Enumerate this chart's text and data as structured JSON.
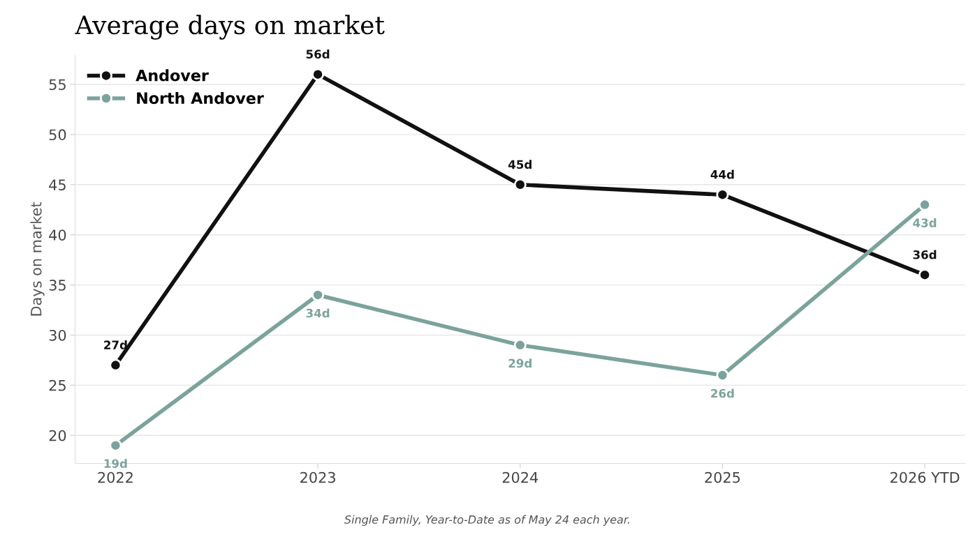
{
  "chart_data": {
    "type": "line",
    "title": "Average days on market",
    "ylabel": "Days on market",
    "categories": [
      "2022",
      "2023",
      "2024",
      "2025",
      "2026 YTD"
    ],
    "series": [
      {
        "name": "Andover",
        "color": "#111111",
        "values": [
          27,
          56,
          45,
          44,
          36
        ],
        "value_labels": [
          "27d",
          "56d",
          "45d",
          "44d",
          "36d"
        ]
      },
      {
        "name": "North Andover",
        "color": "#7ba39b",
        "values": [
          19,
          34,
          29,
          26,
          43
        ],
        "value_labels": [
          "19d",
          "34d",
          "29d",
          "26d",
          "43d"
        ]
      }
    ],
    "ylim": [
      17.2,
      57.9
    ],
    "yticks": [
      20,
      25,
      30,
      35,
      40,
      45,
      50,
      55
    ],
    "grid": "y",
    "legend": "top left",
    "marker": "circle",
    "line_style": "solid",
    "annotations": [
      "Single Family, Year-to-Date as of May 24 each year."
    ]
  }
}
